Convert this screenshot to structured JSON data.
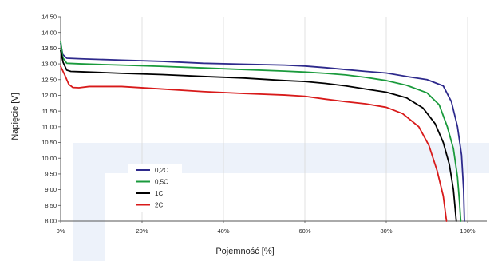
{
  "chart_data": {
    "type": "line",
    "title": "",
    "xlabel": "Pojemność [%]",
    "ylabel": "Napięcie [V]",
    "xlim": [
      0,
      100
    ],
    "ylim": [
      8.0,
      14.5
    ],
    "x_ticks": [
      0,
      20,
      40,
      60,
      80,
      100
    ],
    "x_tick_labels": [
      "0%",
      "20%",
      "40%",
      "60%",
      "80%",
      "100%"
    ],
    "y_ticks": [
      8.0,
      8.5,
      9.0,
      9.5,
      10.0,
      10.5,
      11.0,
      11.5,
      12.0,
      12.5,
      13.0,
      13.5,
      14.0,
      14.5
    ],
    "y_tick_labels": [
      "8,00",
      "8,50",
      "9,00",
      "9,50",
      "10,00",
      "10,50",
      "11,00",
      "11,50",
      "12,00",
      "12,50",
      "13,00",
      "13,50",
      "14,00",
      "14,50"
    ],
    "grid": "vertical",
    "legend_position": "center-left",
    "series": [
      {
        "name": "0,2C",
        "color": "#2e2a8c",
        "points": [
          [
            0,
            13.65
          ],
          [
            0.5,
            13.3
          ],
          [
            1.5,
            13.18
          ],
          [
            5,
            13.16
          ],
          [
            15,
            13.12
          ],
          [
            25,
            13.08
          ],
          [
            35,
            13.02
          ],
          [
            45,
            12.99
          ],
          [
            55,
            12.96
          ],
          [
            60,
            12.93
          ],
          [
            65,
            12.88
          ],
          [
            70,
            12.82
          ],
          [
            75,
            12.76
          ],
          [
            80,
            12.71
          ],
          [
            85,
            12.6
          ],
          [
            90,
            12.5
          ],
          [
            94,
            12.3
          ],
          [
            96,
            11.8
          ],
          [
            97.5,
            11.0
          ],
          [
            98.5,
            10.1
          ],
          [
            99,
            9.0
          ],
          [
            99.2,
            8.0
          ]
        ]
      },
      {
        "name": "0,5C",
        "color": "#1a9a3c",
        "points": [
          [
            0,
            13.72
          ],
          [
            0.5,
            13.2
          ],
          [
            1.5,
            13.02
          ],
          [
            5,
            13.0
          ],
          [
            15,
            12.96
          ],
          [
            25,
            12.92
          ],
          [
            35,
            12.87
          ],
          [
            45,
            12.82
          ],
          [
            55,
            12.77
          ],
          [
            60,
            12.74
          ],
          [
            65,
            12.7
          ],
          [
            70,
            12.65
          ],
          [
            75,
            12.57
          ],
          [
            80,
            12.47
          ],
          [
            85,
            12.32
          ],
          [
            90,
            12.08
          ],
          [
            93,
            11.7
          ],
          [
            95,
            11.0
          ],
          [
            96.5,
            10.3
          ],
          [
            97.5,
            9.4
          ],
          [
            98,
            8.6
          ],
          [
            98.3,
            8.0
          ]
        ]
      },
      {
        "name": "1C",
        "color": "#000000",
        "points": [
          [
            0,
            13.42
          ],
          [
            0.6,
            13.05
          ],
          [
            1.5,
            12.8
          ],
          [
            2.5,
            12.76
          ],
          [
            5,
            12.75
          ],
          [
            15,
            12.7
          ],
          [
            25,
            12.66
          ],
          [
            35,
            12.6
          ],
          [
            45,
            12.55
          ],
          [
            55,
            12.47
          ],
          [
            60,
            12.44
          ],
          [
            65,
            12.38
          ],
          [
            70,
            12.3
          ],
          [
            75,
            12.2
          ],
          [
            80,
            12.1
          ],
          [
            85,
            11.92
          ],
          [
            89,
            11.6
          ],
          [
            92,
            11.1
          ],
          [
            94,
            10.5
          ],
          [
            95.5,
            9.8
          ],
          [
            96.5,
            9.0
          ],
          [
            97.2,
            8.0
          ]
        ]
      },
      {
        "name": "2C",
        "color": "#d81a1a",
        "points": [
          [
            0,
            12.92
          ],
          [
            1,
            12.65
          ],
          [
            2,
            12.35
          ],
          [
            3,
            12.25
          ],
          [
            4.5,
            12.24
          ],
          [
            7,
            12.28
          ],
          [
            15,
            12.28
          ],
          [
            25,
            12.2
          ],
          [
            35,
            12.12
          ],
          [
            45,
            12.06
          ],
          [
            55,
            12.01
          ],
          [
            60,
            11.97
          ],
          [
            65,
            11.88
          ],
          [
            70,
            11.8
          ],
          [
            75,
            11.73
          ],
          [
            80,
            11.62
          ],
          [
            84,
            11.42
          ],
          [
            88,
            11.0
          ],
          [
            90.5,
            10.4
          ],
          [
            92.5,
            9.6
          ],
          [
            94,
            8.8
          ],
          [
            94.8,
            8.0
          ]
        ]
      }
    ]
  }
}
